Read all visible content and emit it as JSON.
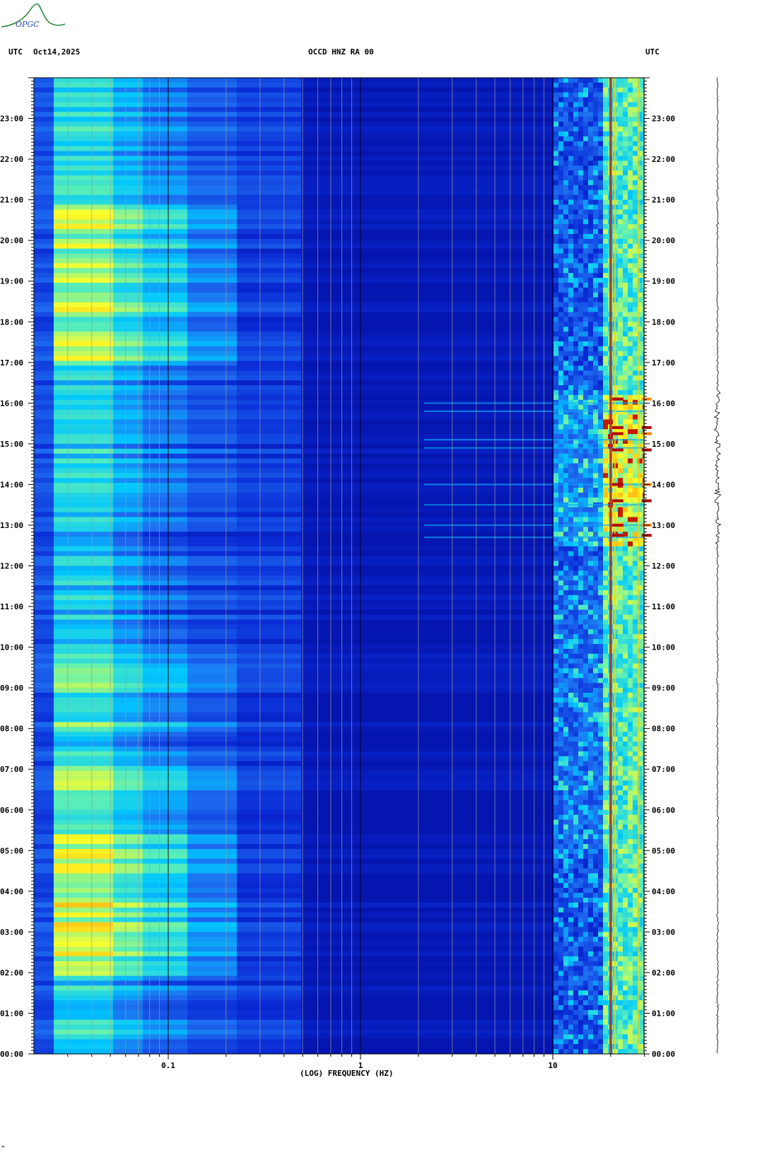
{
  "header": {
    "left_utc": "UTC",
    "date": "Oct14,2025",
    "station": "OCCD HNZ RA 00",
    "right_utc": "UTC"
  },
  "logo": {
    "text": "OPGC",
    "colors": [
      "#2b8a3e",
      "#2a4fb0"
    ]
  },
  "chart_data": {
    "type": "heatmap",
    "title": "OCCD HNZ RA 00",
    "xlabel": "(LOG) FREQUENCY (HZ)",
    "x_scale": "log",
    "xlim": [
      0.02,
      35
    ],
    "x_ticks": [
      {
        "value": 0.1,
        "label": "0.1"
      },
      {
        "value": 1,
        "label": "1"
      },
      {
        "value": 10,
        "label": "10"
      }
    ],
    "ylabel": "UTC",
    "ylim_hours": [
      0,
      24
    ],
    "y_ticks": [
      "00:00",
      "01:00",
      "02:00",
      "03:00",
      "04:00",
      "05:00",
      "06:00",
      "07:00",
      "08:00",
      "09:00",
      "10:00",
      "11:00",
      "12:00",
      "13:00",
      "14:00",
      "15:00",
      "16:00",
      "17:00",
      "18:00",
      "19:00",
      "20:00",
      "21:00",
      "22:00",
      "23:00"
    ],
    "colormap": [
      "#00008b",
      "#0a2bd6",
      "#1e6cf0",
      "#00c8ff",
      "#5ff0b4",
      "#ffff28",
      "#ff8000",
      "#b40000"
    ],
    "notable_features": [
      {
        "desc": "persistent narrowband line",
        "freq_hz": 20
      },
      {
        "desc": "strong high-frequency energy",
        "freq_range_hz": [
          12,
          32
        ],
        "hours": [
          12.5,
          16.2
        ]
      }
    ]
  },
  "seismogram_trace": {
    "color": "#000000"
  },
  "footer_mark": "\""
}
